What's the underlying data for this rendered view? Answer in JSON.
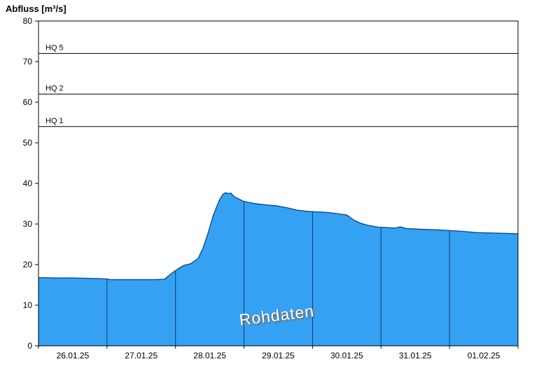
{
  "title": "Abfluss [m³/s]",
  "watermark": "Rohdaten",
  "chart_data": {
    "type": "area",
    "series_name": "Abfluss",
    "title": "Abfluss [m³/s]",
    "ylabel": "Abfluss [m³/s]",
    "xlabel": "",
    "ylim": [
      0,
      80
    ],
    "y_ticks": [
      0,
      10,
      20,
      30,
      40,
      50,
      60,
      70,
      80
    ],
    "x_days": 7,
    "x_tick_labels": [
      "26.01.25",
      "27.01.25",
      "28.01.25",
      "29.01.25",
      "30.01.25",
      "31.01.25",
      "01.02.25"
    ],
    "reference_lines": [
      {
        "label": "HQ 1",
        "value": 54
      },
      {
        "label": "HQ 2",
        "value": 62
      },
      {
        "label": "HQ 5",
        "value": 72
      }
    ],
    "points": [
      [
        0.0,
        16.8
      ],
      [
        0.25,
        16.7
      ],
      [
        0.5,
        16.7
      ],
      [
        0.75,
        16.6
      ],
      [
        0.97,
        16.5
      ],
      [
        1.05,
        16.3
      ],
      [
        1.3,
        16.3
      ],
      [
        1.5,
        16.3
      ],
      [
        1.7,
        16.3
      ],
      [
        1.84,
        16.4
      ],
      [
        1.94,
        17.8
      ],
      [
        2.04,
        19.0
      ],
      [
        2.12,
        19.8
      ],
      [
        2.22,
        20.2
      ],
      [
        2.33,
        21.5
      ],
      [
        2.4,
        24.0
      ],
      [
        2.48,
        28.0
      ],
      [
        2.55,
        32.0
      ],
      [
        2.63,
        35.5
      ],
      [
        2.69,
        37.3
      ],
      [
        2.73,
        37.7
      ],
      [
        2.78,
        37.5
      ],
      [
        2.81,
        37.6
      ],
      [
        2.84,
        37.0
      ],
      [
        2.88,
        36.5
      ],
      [
        2.91,
        36.3
      ],
      [
        2.99,
        35.6
      ],
      [
        3.04,
        35.4
      ],
      [
        3.17,
        35.0
      ],
      [
        3.32,
        34.7
      ],
      [
        3.47,
        34.5
      ],
      [
        3.63,
        34.0
      ],
      [
        3.78,
        33.4
      ],
      [
        3.93,
        33.1
      ],
      [
        4.04,
        33.0
      ],
      [
        4.19,
        32.9
      ],
      [
        4.34,
        32.6
      ],
      [
        4.5,
        32.2
      ],
      [
        4.6,
        31.0
      ],
      [
        4.7,
        30.2
      ],
      [
        4.8,
        29.7
      ],
      [
        4.96,
        29.2
      ],
      [
        5.11,
        29.1
      ],
      [
        5.21,
        29.0
      ],
      [
        5.28,
        29.3
      ],
      [
        5.37,
        28.9
      ],
      [
        5.57,
        28.7
      ],
      [
        5.77,
        28.6
      ],
      [
        5.99,
        28.4
      ],
      [
        6.18,
        28.2
      ],
      [
        6.39,
        27.9
      ],
      [
        6.59,
        27.8
      ],
      [
        6.8,
        27.7
      ],
      [
        7.0,
        27.6
      ]
    ],
    "grid": "vertical day-boundary lines inside filled area only",
    "legend_position": "none",
    "colors": {
      "fill": "#35a1f2",
      "line": "#0d4d8c",
      "day_line": "#0b3d66",
      "axis": "#000000",
      "reference_line": "#000000"
    }
  }
}
